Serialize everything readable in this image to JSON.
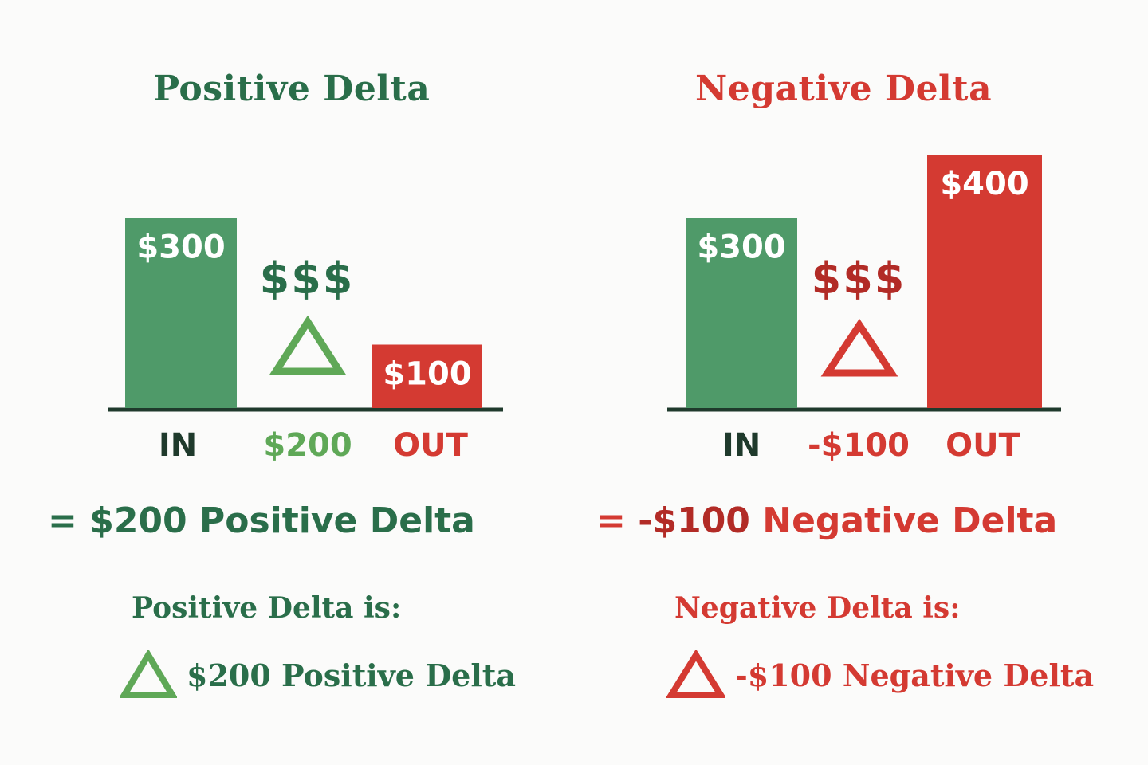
{
  "colors": {
    "green_dark": "#2a6e4a",
    "green_bar": "#4f9a69",
    "green_light": "#5fa857",
    "red": "#d43a32",
    "red_dark": "#b22b26",
    "axis": "#1f3a2c"
  },
  "chart_data": [
    {
      "type": "bar",
      "title": "Positive Delta",
      "categories": [
        "IN",
        "OUT"
      ],
      "values": [
        300,
        100
      ],
      "value_labels": [
        "$300",
        "$100"
      ],
      "bar_colors": [
        "#4f9a69",
        "#d43a32"
      ],
      "middle_symbol": "$$$",
      "delta_label": "$200",
      "ylim": [
        0,
        400
      ]
    },
    {
      "type": "bar",
      "title": "Negative Delta",
      "categories": [
        "IN",
        "OUT"
      ],
      "values": [
        300,
        400
      ],
      "value_labels": [
        "$300",
        "$400"
      ],
      "bar_colors": [
        "#4f9a69",
        "#d43a32"
      ],
      "middle_symbol": "$$$",
      "delta_label": "-$100",
      "ylim": [
        0,
        400
      ]
    }
  ],
  "left": {
    "result_prefix": "=",
    "result_value": "$200",
    "result_text": "Positive Delta",
    "is_label": "Positive Delta is:",
    "bullet_text": "$200 Positive Delta",
    "icon": "delta-triangle-icon"
  },
  "right": {
    "result_prefix": "=",
    "result_value": "-$100",
    "result_text": "Negative Delta",
    "is_label": "Negative Delta is:",
    "bullet_text": "-$100 Negative Delta",
    "icon": "delta-triangle-icon"
  }
}
